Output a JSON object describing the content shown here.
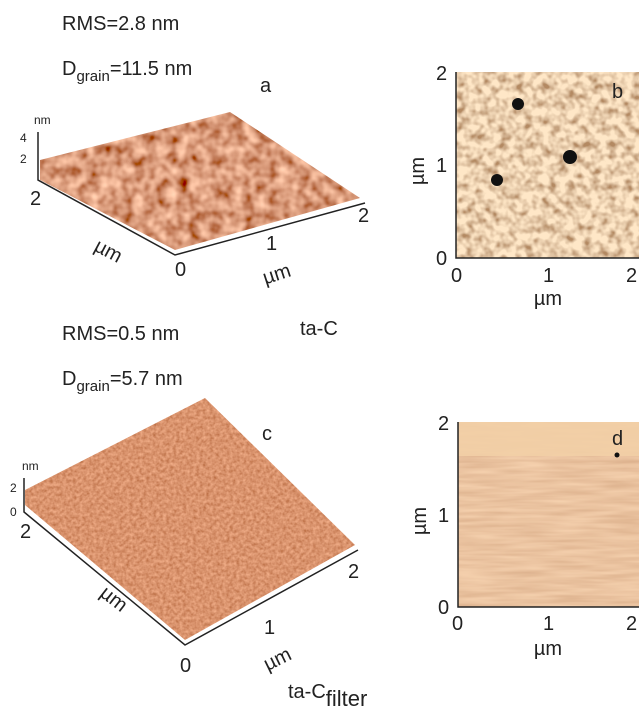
{
  "panel_a": {
    "rms": "RMS=2.8 nm",
    "d_main": "D",
    "d_sub": "grain",
    "d_rest": "=11.5 nm",
    "label": "a",
    "z_unit": "nm",
    "z_ticks": [
      "4",
      "2"
    ],
    "depth_tick": "2",
    "depth_unit": "µm",
    "origin": "0",
    "width_ticks": [
      "1",
      "2"
    ],
    "width_unit": "µm"
  },
  "panel_b": {
    "label": "b",
    "y_ticks": [
      "2",
      "1",
      "0"
    ],
    "y_unit": "µm",
    "x_ticks": [
      "0",
      "1",
      "2"
    ],
    "x_unit": "µm"
  },
  "title_top": "ta-C",
  "panel_c": {
    "rms": "RMS=0.5 nm",
    "d_main": "D",
    "d_sub": "grain",
    "d_rest": "=5.7 nm",
    "label": "c",
    "z_unit": "nm",
    "z_ticks": [
      "2",
      "0"
    ],
    "depth_tick": "2",
    "depth_unit": "µm",
    "origin": "0",
    "width_ticks": [
      "1",
      "2"
    ],
    "width_unit": "µm"
  },
  "panel_d": {
    "label": "d",
    "y_ticks": [
      "2",
      "1",
      "0"
    ],
    "y_unit": "µm",
    "x_ticks": [
      "0",
      "1",
      "2"
    ],
    "x_unit": "µm"
  },
  "title_bottom": {
    "main": "ta-C",
    "sub": "filter"
  }
}
